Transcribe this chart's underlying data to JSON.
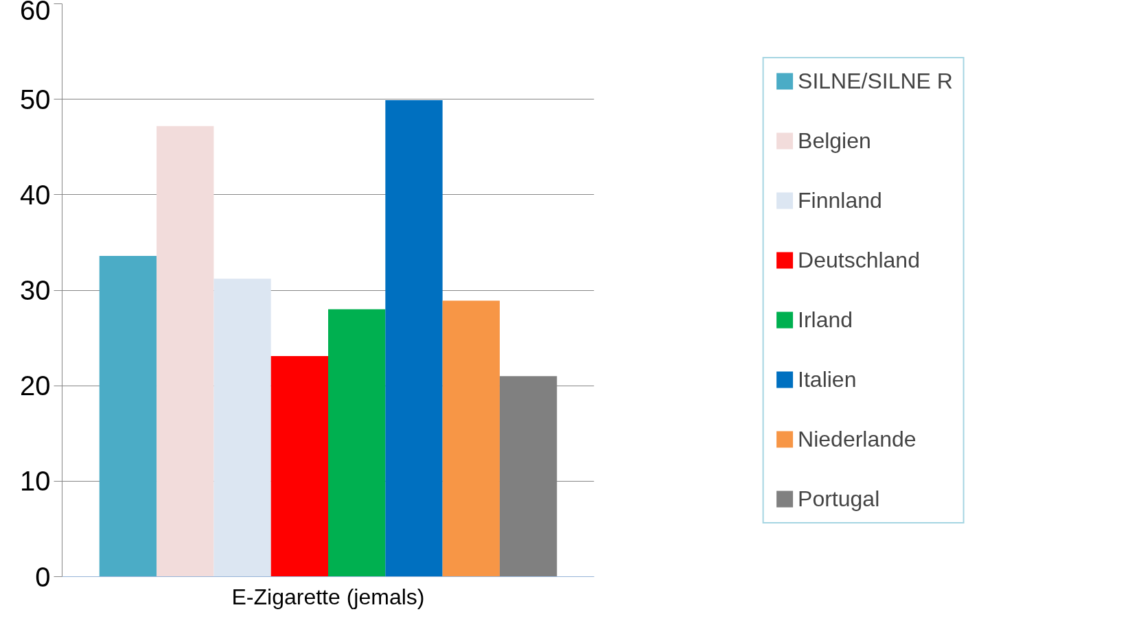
{
  "chart_data": {
    "type": "bar",
    "categories": [
      "E-Zigarette (jemals)"
    ],
    "series": [
      {
        "name": "SILNE/SILNE R",
        "color": "#4bacc6",
        "values": [
          33.6
        ]
      },
      {
        "name": "Belgien",
        "color": "#f2dcdb",
        "values": [
          47.2
        ]
      },
      {
        "name": "Finnland",
        "color": "#dce6f2",
        "values": [
          31.2
        ]
      },
      {
        "name": "Deutschland",
        "color": "#ff0000",
        "values": [
          23.1
        ]
      },
      {
        "name": "Irland",
        "color": "#00b050",
        "values": [
          28
        ]
      },
      {
        "name": "Italien",
        "color": "#0070c0",
        "values": [
          49.9
        ]
      },
      {
        "name": "Niederlande",
        "color": "#f79646",
        "values": [
          28.9
        ]
      },
      {
        "name": "Portugal",
        "color": "#808080",
        "values": [
          21
        ]
      }
    ],
    "ylim": [
      0,
      60
    ],
    "yticks": [
      0,
      10,
      20,
      30,
      40,
      50,
      60
    ],
    "grid": "y",
    "legend": "right"
  }
}
